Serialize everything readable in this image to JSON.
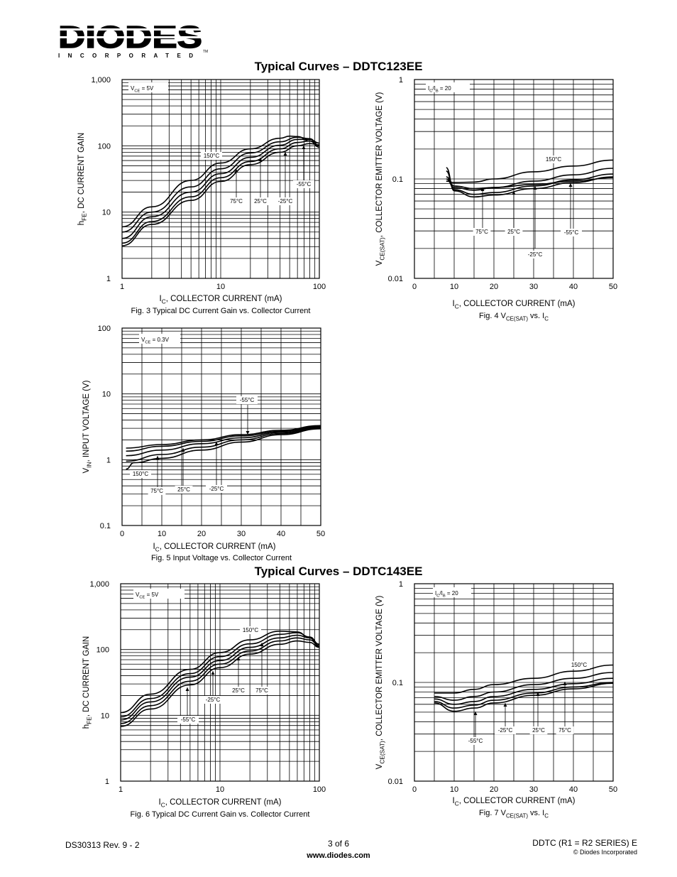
{
  "header": {
    "logo_text": "DIODES",
    "logo_subtext": "INCORPORATED",
    "logo_tm": "TM"
  },
  "sections": [
    {
      "title": "Typical Curves – DDTC123EE"
    },
    {
      "title": "Typical Curves – DDTC143EE"
    }
  ],
  "footer": {
    "doc_number": "DS30313 Rev. 9 - 2",
    "page": "3 of 6",
    "url": "www.diodes.com",
    "product": "DDTC (R1 = R2 SERIES)  E",
    "copyright": "© Diodes Incorporated"
  },
  "chart_data": [
    {
      "id": "fig3",
      "type": "line",
      "caption": "Fig. 3  Typical DC Current Gain vs. Collector Current",
      "xlabel": "I_C, COLLECTOR CURRENT (mA)",
      "ylabel": "h_FE, DC CURRENT GAIN",
      "xscale": "log",
      "yscale": "log",
      "xlim": [
        1,
        100
      ],
      "ylim": [
        1,
        1000
      ],
      "xticks": [
        1,
        10,
        100
      ],
      "xticklabels": [
        "1",
        "10",
        "100"
      ],
      "yticks": [
        1,
        10,
        100,
        1000
      ],
      "yticklabels": [
        "1",
        "10",
        "100",
        "1,000"
      ],
      "condition": "V_CE = 5V",
      "series": [
        {
          "name": "150°C",
          "x": [
            1,
            2,
            5,
            10,
            20,
            40,
            50,
            60,
            80,
            100
          ],
          "y": [
            6,
            12,
            30,
            55,
            90,
            130,
            140,
            138,
            118,
            95
          ]
        },
        {
          "name": "75°C",
          "x": [
            1,
            2,
            5,
            10,
            20,
            40,
            60,
            80,
            100
          ],
          "y": [
            5,
            10,
            24,
            45,
            78,
            115,
            135,
            128,
            100
          ]
        },
        {
          "name": "25°C",
          "x": [
            1,
            2,
            5,
            10,
            20,
            40,
            60,
            80,
            100
          ],
          "y": [
            4,
            8.5,
            20,
            38,
            67,
            102,
            125,
            125,
            110
          ]
        },
        {
          "name": "-25°C",
          "x": [
            1,
            2,
            5,
            10,
            20,
            40,
            60,
            80,
            100
          ],
          "y": [
            3.4,
            7.2,
            17,
            33,
            58,
            90,
            112,
            118,
            110
          ]
        },
        {
          "name": "-55°C",
          "x": [
            1,
            2,
            5,
            10,
            20,
            40,
            60,
            80,
            100
          ],
          "y": [
            3.1,
            6.5,
            15,
            29,
            52,
            80,
            100,
            108,
            103
          ]
        }
      ],
      "annotations": [
        {
          "text": "150°C"
        },
        {
          "text": "75°C"
        },
        {
          "text": "25°C"
        },
        {
          "text": "-25°C"
        },
        {
          "text": "-55°C"
        }
      ]
    },
    {
      "id": "fig4",
      "type": "line",
      "caption": "Fig. 4  V_CE(SAT) vs. I_C",
      "xlabel": "I_C, COLLECTOR CURRENT (mA)",
      "ylabel": "V_CE(SAT), COLLECTOR EMITTER VOLTAGE (V)",
      "xscale": "linear",
      "yscale": "log",
      "xlim": [
        0,
        50
      ],
      "ylim": [
        0.01,
        1
      ],
      "xticks": [
        0,
        10,
        20,
        30,
        40,
        50
      ],
      "xticklabels": [
        "0",
        "10",
        "20",
        "30",
        "40",
        "50"
      ],
      "yticks": [
        0.01,
        0.1,
        1
      ],
      "yticklabels": [
        "0.01",
        "0.1",
        "1"
      ],
      "condition": "I_C/I_B = 20",
      "series": [
        {
          "name": "150°C",
          "x": [
            8,
            10,
            15,
            20,
            30,
            40,
            50
          ],
          "y": [
            0.095,
            0.092,
            0.093,
            0.1,
            0.118,
            0.135,
            0.155
          ]
        },
        {
          "name": "75°C",
          "x": [
            8,
            10,
            15,
            20,
            30,
            40,
            50
          ],
          "y": [
            0.1,
            0.082,
            0.077,
            0.082,
            0.095,
            0.11,
            0.128
          ]
        },
        {
          "name": "25°C",
          "x": [
            8,
            10,
            15,
            20,
            30,
            40,
            50
          ],
          "y": [
            0.12,
            0.078,
            0.07,
            0.073,
            0.085,
            0.098,
            0.112
          ]
        },
        {
          "name": "-25°C",
          "x": [
            8,
            10,
            15,
            20,
            30,
            40,
            50
          ],
          "y": [
            0.13,
            0.076,
            0.066,
            0.069,
            0.08,
            0.092,
            0.105
          ]
        },
        {
          "name": "-55°C",
          "x": [
            8,
            10,
            15,
            20,
            30,
            40,
            50
          ],
          "y": [
            0.105,
            0.085,
            0.08,
            0.082,
            0.088,
            0.095,
            0.103
          ]
        }
      ],
      "annotations": [
        {
          "text": "150°C"
        },
        {
          "text": "75°C"
        },
        {
          "text": "25°C"
        },
        {
          "text": "-25°C"
        },
        {
          "text": "-55°C"
        }
      ]
    },
    {
      "id": "fig5",
      "type": "line",
      "caption": "Fig. 5  Input Voltage vs. Collector Current",
      "xlabel": "I_C, COLLECTOR CURRENT (mA)",
      "ylabel": "V_IN, INPUT VOLTAGE (V)",
      "xscale": "linear",
      "yscale": "log",
      "xlim": [
        0,
        50
      ],
      "ylim": [
        0.1,
        100
      ],
      "xticks": [
        0,
        10,
        20,
        30,
        40,
        50
      ],
      "xticklabels": [
        "0",
        "10",
        "20",
        "30",
        "40",
        "50"
      ],
      "yticks": [
        0.1,
        1,
        10,
        100
      ],
      "yticklabels": [
        "0.1",
        "1",
        "10",
        "100"
      ],
      "condition": "V_CE = 0.3V",
      "series": [
        {
          "name": "-55°C",
          "x": [
            1,
            10,
            20,
            30,
            40,
            50
          ],
          "y": [
            1.5,
            1.7,
            2.0,
            2.4,
            2.8,
            3.3
          ]
        },
        {
          "name": "-25°C",
          "x": [
            1,
            10,
            20,
            30,
            40,
            50
          ],
          "y": [
            1.35,
            1.6,
            1.9,
            2.3,
            2.7,
            3.2
          ]
        },
        {
          "name": "25°C",
          "x": [
            1,
            10,
            20,
            30,
            40,
            50
          ],
          "y": [
            1.15,
            1.4,
            1.75,
            2.15,
            2.6,
            3.1
          ]
        },
        {
          "name": "75°C",
          "x": [
            1,
            10,
            20,
            30,
            40,
            50
          ],
          "y": [
            0.95,
            1.2,
            1.55,
            2.0,
            2.5,
            3.0
          ]
        },
        {
          "name": "150°C",
          "x": [
            1,
            3,
            10,
            20,
            30,
            40,
            50
          ],
          "y": [
            0.72,
            0.9,
            1.05,
            1.4,
            1.85,
            2.4,
            2.95
          ]
        }
      ],
      "annotations": [
        {
          "text": "-55°C"
        },
        {
          "text": "150°C"
        },
        {
          "text": "75°C"
        },
        {
          "text": "25°C"
        },
        {
          "text": "-25°C"
        }
      ]
    },
    {
      "id": "fig6",
      "type": "line",
      "caption": "Fig. 6  Typical DC Current Gain vs. Collector Current",
      "xlabel": "I_C, COLLECTOR CURRENT (mA)",
      "ylabel": "h_FE, DC CURRENT GAIN",
      "xscale": "log",
      "yscale": "log",
      "xlim": [
        1,
        100
      ],
      "ylim": [
        1,
        1000
      ],
      "xticks": [
        1,
        10,
        100
      ],
      "xticklabels": [
        "1",
        "10",
        "100"
      ],
      "yticks": [
        1,
        10,
        100,
        1000
      ],
      "yticklabels": [
        "1",
        "10",
        "100",
        "1,000"
      ],
      "condition": "V_CE = 5V",
      "series": [
        {
          "name": "150°C",
          "x": [
            1,
            2,
            5,
            10,
            20,
            40,
            60,
            80,
            100
          ],
          "y": [
            11,
            21,
            50,
            90,
            140,
            190,
            185,
            150,
            110
          ]
        },
        {
          "name": "75°C",
          "x": [
            1,
            2,
            5,
            10,
            20,
            40,
            60,
            80,
            100
          ],
          "y": [
            9.5,
            18,
            43,
            78,
            122,
            170,
            180,
            155,
            120
          ]
        },
        {
          "name": "25°C",
          "x": [
            1,
            2,
            5,
            10,
            20,
            40,
            60,
            80,
            100
          ],
          "y": [
            8.5,
            16,
            38,
            68,
            108,
            150,
            165,
            150,
            120
          ]
        },
        {
          "name": "-25°C",
          "x": [
            1,
            2,
            5,
            10,
            20,
            40,
            60,
            80,
            100
          ],
          "y": [
            7.5,
            14,
            33,
            60,
            95,
            135,
            150,
            140,
            115
          ]
        },
        {
          "name": "-55°C",
          "x": [
            1,
            2,
            5,
            10,
            20,
            40,
            60,
            80,
            100
          ],
          "y": [
            6.8,
            12.5,
            29,
            53,
            85,
            120,
            135,
            128,
            108
          ]
        }
      ],
      "annotations": [
        {
          "text": "150°C"
        },
        {
          "text": "25°C"
        },
        {
          "text": "75°C"
        },
        {
          "text": "-25°C"
        },
        {
          "text": "-55°C"
        }
      ]
    },
    {
      "id": "fig7",
      "type": "line",
      "caption": "Fig. 7  V_CE(SAT) vs. I_C",
      "xlabel": "I_C, COLLECTOR CURRENT (mA)",
      "ylabel": "V_CE(SAT), COLLECTOR EMITTER VOLTAGE (V)",
      "xscale": "linear",
      "yscale": "log",
      "xlim": [
        0,
        50
      ],
      "ylim": [
        0.01,
        1
      ],
      "xticks": [
        0,
        10,
        20,
        30,
        40,
        50
      ],
      "xticklabels": [
        "0",
        "10",
        "20",
        "30",
        "40",
        "50"
      ],
      "yticks": [
        0.01,
        0.1,
        1
      ],
      "yticklabels": [
        "0.01",
        "0.1",
        "1"
      ],
      "condition": "I_C/I_B = 20",
      "series": [
        {
          "name": "150°C",
          "x": [
            5,
            10,
            15,
            20,
            30,
            40,
            50
          ],
          "y": [
            0.078,
            0.078,
            0.085,
            0.095,
            0.11,
            0.13,
            0.15
          ]
        },
        {
          "name": "75°C",
          "x": [
            5,
            10,
            15,
            20,
            30,
            40,
            50
          ],
          "y": [
            0.072,
            0.066,
            0.072,
            0.08,
            0.095,
            0.11,
            0.126
          ]
        },
        {
          "name": "25°C",
          "x": [
            5,
            10,
            15,
            20,
            30,
            40,
            50
          ],
          "y": [
            0.068,
            0.06,
            0.064,
            0.072,
            0.085,
            0.097,
            0.11
          ]
        },
        {
          "name": "-25°C",
          "x": [
            5,
            10,
            15,
            20,
            30,
            40,
            50
          ],
          "y": [
            0.064,
            0.055,
            0.059,
            0.066,
            0.078,
            0.09,
            0.1
          ]
        },
        {
          "name": "-55°C",
          "x": [
            5,
            10,
            15,
            20,
            30,
            40,
            50
          ],
          "y": [
            0.062,
            0.051,
            0.055,
            0.062,
            0.074,
            0.086,
            0.098
          ]
        }
      ],
      "annotations": [
        {
          "text": "150°C"
        },
        {
          "text": "-25°C"
        },
        {
          "text": "25°C"
        },
        {
          "text": "75°C"
        },
        {
          "text": "-55°C"
        }
      ]
    }
  ]
}
